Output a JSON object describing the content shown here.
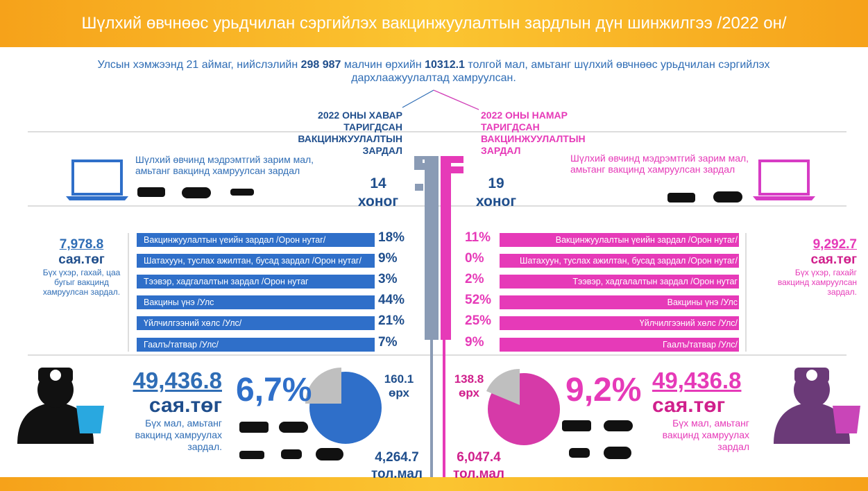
{
  "header": {
    "title": "Шүлхий өвчнөөс урьдчилан сэргийлэх вакцинжуулалтын зардлын дүн шинжилгээ /2022 он/"
  },
  "intro": {
    "part1": "Улсын хэмжээнд 21 аймаг, нийслэлийн ",
    "households": "298 987",
    "part2": " малчин өрхийн ",
    "heads": "10312.1",
    "part3": " толгой мал, амьтанг шүлхий өвчнөөс урьдчилан сэргийлэх дархлаажуулалтад хамруулсан."
  },
  "left": {
    "heading": "2022 ОНЫ ХАВАР ТАРИГДСАН ВАКЦИНЖУУЛАЛТЫН ЗАРДАЛ",
    "note": "Шүлхий өвчинд мэдрэмтгий зарим мал, амьтанг вакцинд хамруулсан зардал",
    "days": "14",
    "days_unit": "хоног",
    "budget": {
      "value": "7,978.8",
      "unit": "сая.төг",
      "desc": "Бүх үхэр, гахай, цаа бугыг вакцинд хамруулсан зардал."
    },
    "items": [
      {
        "label": "Вакцинжуулалтын үеийн зардал /Орон нутаг/",
        "share": "18%"
      },
      {
        "label": "Шатахуун, туслах ажилтан, бусад зардал /Орон нутаг/",
        "share": "9%"
      },
      {
        "label": "Тээвэр, хадгалалтын зардал /Орон нутаг",
        "share": "3%"
      },
      {
        "label": "Вакцины үнэ /Улс",
        "share": "44%"
      },
      {
        "label": "Үйлчилгээний хөлс /Улс/",
        "share": "21%"
      },
      {
        "label": "Гаалъ/татвар /Улс/",
        "share": "7%"
      }
    ],
    "total": {
      "value": "49,436.8",
      "unit": "сая.төг",
      "desc": "Бүх мал, амьтанг вакцинд хамруулах зардал."
    },
    "percent": "6,7%",
    "households": "160.1",
    "households_unit": "өрх",
    "heads": "4,264.7",
    "heads_unit": "тол.мал"
  },
  "right": {
    "heading": "2022 ОНЫ НАМАР ТАРИГДСАН ВАКЦИНЖУУЛАЛТЫН ЗАРДАЛ",
    "note": "Шүлхий өвчинд мэдрэмтгий зарим мал, амьтанг вакцинд хамруулсан зардал",
    "days": "19",
    "days_unit": "хоног",
    "budget": {
      "value": "9,292.7",
      "unit": "сая.төг",
      "desc": "Бүх үхэр, гахайг вакцинд хамруулсан зардал."
    },
    "items": [
      {
        "label": "Вакцинжуулалтын үеийн зардал /Орон нутаг/",
        "share": "11%"
      },
      {
        "label": "Шатахуун, туслах ажилтан, бусад зардал /Орон нутаг/",
        "share": "0%"
      },
      {
        "label": "Тээвэр, хадгалалтын зардал /Орон нутаг",
        "share": "2%"
      },
      {
        "label": "Вакцины үнэ /Улс",
        "share": "52%"
      },
      {
        "label": "Үйлчилгээний хөлс /Улс/",
        "share": "25%"
      },
      {
        "label": "Гаалъ/татвар /Улс/",
        "share": "9%"
      }
    ],
    "total": {
      "value": "49,436.8",
      "unit": "сая.төг",
      "desc": "Бүх мал, амьтанг вакцинд хамруулах зардал"
    },
    "percent": "9,2%",
    "households": "138.8",
    "households_unit": "өрх",
    "heads": "6,047.4",
    "heads_unit": "тол.мал"
  }
}
